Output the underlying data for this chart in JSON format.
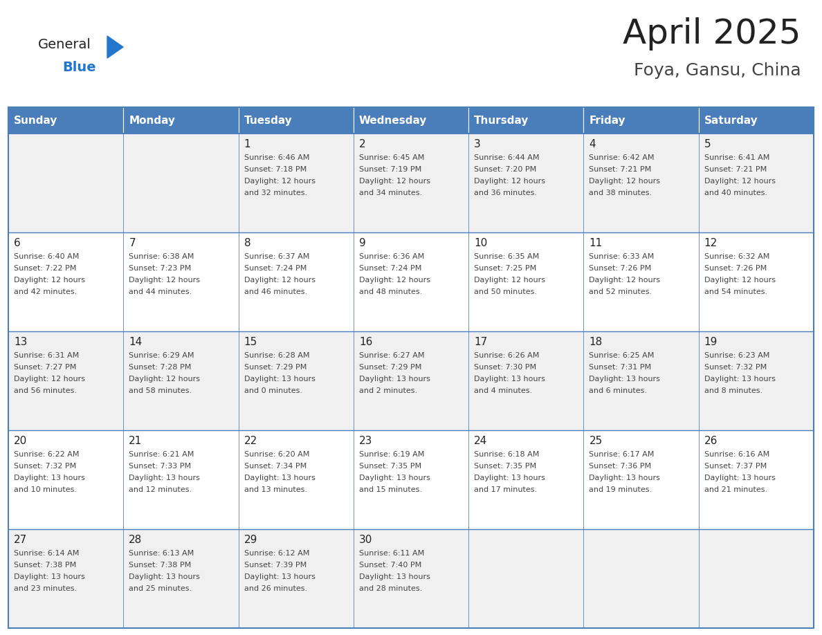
{
  "title": "April 2025",
  "subtitle": "Foya, Gansu, China",
  "days_of_week": [
    "Sunday",
    "Monday",
    "Tuesday",
    "Wednesday",
    "Thursday",
    "Friday",
    "Saturday"
  ],
  "header_bg": "#4A7EBB",
  "header_text": "#FFFFFF",
  "row_bg_light": "#F0F0F0",
  "row_bg_white": "#FFFFFF",
  "border_color": "#4A7EBB",
  "day_num_color": "#222222",
  "text_color": "#444444",
  "title_color": "#222222",
  "subtitle_color": "#444444",
  "logo_general_color": "#222222",
  "logo_blue_color": "#2277CC",
  "logo_triangle_color": "#2277CC",
  "calendar_data": [
    [
      {
        "day": "",
        "sunrise": "",
        "sunset": "",
        "daylight_line1": "",
        "daylight_line2": ""
      },
      {
        "day": "",
        "sunrise": "",
        "sunset": "",
        "daylight_line1": "",
        "daylight_line2": ""
      },
      {
        "day": "1",
        "sunrise": "Sunrise: 6:46 AM",
        "sunset": "Sunset: 7:18 PM",
        "daylight_line1": "Daylight: 12 hours",
        "daylight_line2": "and 32 minutes."
      },
      {
        "day": "2",
        "sunrise": "Sunrise: 6:45 AM",
        "sunset": "Sunset: 7:19 PM",
        "daylight_line1": "Daylight: 12 hours",
        "daylight_line2": "and 34 minutes."
      },
      {
        "day": "3",
        "sunrise": "Sunrise: 6:44 AM",
        "sunset": "Sunset: 7:20 PM",
        "daylight_line1": "Daylight: 12 hours",
        "daylight_line2": "and 36 minutes."
      },
      {
        "day": "4",
        "sunrise": "Sunrise: 6:42 AM",
        "sunset": "Sunset: 7:21 PM",
        "daylight_line1": "Daylight: 12 hours",
        "daylight_line2": "and 38 minutes."
      },
      {
        "day": "5",
        "sunrise": "Sunrise: 6:41 AM",
        "sunset": "Sunset: 7:21 PM",
        "daylight_line1": "Daylight: 12 hours",
        "daylight_line2": "and 40 minutes."
      }
    ],
    [
      {
        "day": "6",
        "sunrise": "Sunrise: 6:40 AM",
        "sunset": "Sunset: 7:22 PM",
        "daylight_line1": "Daylight: 12 hours",
        "daylight_line2": "and 42 minutes."
      },
      {
        "day": "7",
        "sunrise": "Sunrise: 6:38 AM",
        "sunset": "Sunset: 7:23 PM",
        "daylight_line1": "Daylight: 12 hours",
        "daylight_line2": "and 44 minutes."
      },
      {
        "day": "8",
        "sunrise": "Sunrise: 6:37 AM",
        "sunset": "Sunset: 7:24 PM",
        "daylight_line1": "Daylight: 12 hours",
        "daylight_line2": "and 46 minutes."
      },
      {
        "day": "9",
        "sunrise": "Sunrise: 6:36 AM",
        "sunset": "Sunset: 7:24 PM",
        "daylight_line1": "Daylight: 12 hours",
        "daylight_line2": "and 48 minutes."
      },
      {
        "day": "10",
        "sunrise": "Sunrise: 6:35 AM",
        "sunset": "Sunset: 7:25 PM",
        "daylight_line1": "Daylight: 12 hours",
        "daylight_line2": "and 50 minutes."
      },
      {
        "day": "11",
        "sunrise": "Sunrise: 6:33 AM",
        "sunset": "Sunset: 7:26 PM",
        "daylight_line1": "Daylight: 12 hours",
        "daylight_line2": "and 52 minutes."
      },
      {
        "day": "12",
        "sunrise": "Sunrise: 6:32 AM",
        "sunset": "Sunset: 7:26 PM",
        "daylight_line1": "Daylight: 12 hours",
        "daylight_line2": "and 54 minutes."
      }
    ],
    [
      {
        "day": "13",
        "sunrise": "Sunrise: 6:31 AM",
        "sunset": "Sunset: 7:27 PM",
        "daylight_line1": "Daylight: 12 hours",
        "daylight_line2": "and 56 minutes."
      },
      {
        "day": "14",
        "sunrise": "Sunrise: 6:29 AM",
        "sunset": "Sunset: 7:28 PM",
        "daylight_line1": "Daylight: 12 hours",
        "daylight_line2": "and 58 minutes."
      },
      {
        "day": "15",
        "sunrise": "Sunrise: 6:28 AM",
        "sunset": "Sunset: 7:29 PM",
        "daylight_line1": "Daylight: 13 hours",
        "daylight_line2": "and 0 minutes."
      },
      {
        "day": "16",
        "sunrise": "Sunrise: 6:27 AM",
        "sunset": "Sunset: 7:29 PM",
        "daylight_line1": "Daylight: 13 hours",
        "daylight_line2": "and 2 minutes."
      },
      {
        "day": "17",
        "sunrise": "Sunrise: 6:26 AM",
        "sunset": "Sunset: 7:30 PM",
        "daylight_line1": "Daylight: 13 hours",
        "daylight_line2": "and 4 minutes."
      },
      {
        "day": "18",
        "sunrise": "Sunrise: 6:25 AM",
        "sunset": "Sunset: 7:31 PM",
        "daylight_line1": "Daylight: 13 hours",
        "daylight_line2": "and 6 minutes."
      },
      {
        "day": "19",
        "sunrise": "Sunrise: 6:23 AM",
        "sunset": "Sunset: 7:32 PM",
        "daylight_line1": "Daylight: 13 hours",
        "daylight_line2": "and 8 minutes."
      }
    ],
    [
      {
        "day": "20",
        "sunrise": "Sunrise: 6:22 AM",
        "sunset": "Sunset: 7:32 PM",
        "daylight_line1": "Daylight: 13 hours",
        "daylight_line2": "and 10 minutes."
      },
      {
        "day": "21",
        "sunrise": "Sunrise: 6:21 AM",
        "sunset": "Sunset: 7:33 PM",
        "daylight_line1": "Daylight: 13 hours",
        "daylight_line2": "and 12 minutes."
      },
      {
        "day": "22",
        "sunrise": "Sunrise: 6:20 AM",
        "sunset": "Sunset: 7:34 PM",
        "daylight_line1": "Daylight: 13 hours",
        "daylight_line2": "and 13 minutes."
      },
      {
        "day": "23",
        "sunrise": "Sunrise: 6:19 AM",
        "sunset": "Sunset: 7:35 PM",
        "daylight_line1": "Daylight: 13 hours",
        "daylight_line2": "and 15 minutes."
      },
      {
        "day": "24",
        "sunrise": "Sunrise: 6:18 AM",
        "sunset": "Sunset: 7:35 PM",
        "daylight_line1": "Daylight: 13 hours",
        "daylight_line2": "and 17 minutes."
      },
      {
        "day": "25",
        "sunrise": "Sunrise: 6:17 AM",
        "sunset": "Sunset: 7:36 PM",
        "daylight_line1": "Daylight: 13 hours",
        "daylight_line2": "and 19 minutes."
      },
      {
        "day": "26",
        "sunrise": "Sunrise: 6:16 AM",
        "sunset": "Sunset: 7:37 PM",
        "daylight_line1": "Daylight: 13 hours",
        "daylight_line2": "and 21 minutes."
      }
    ],
    [
      {
        "day": "27",
        "sunrise": "Sunrise: 6:14 AM",
        "sunset": "Sunset: 7:38 PM",
        "daylight_line1": "Daylight: 13 hours",
        "daylight_line2": "and 23 minutes."
      },
      {
        "day": "28",
        "sunrise": "Sunrise: 6:13 AM",
        "sunset": "Sunset: 7:38 PM",
        "daylight_line1": "Daylight: 13 hours",
        "daylight_line2": "and 25 minutes."
      },
      {
        "day": "29",
        "sunrise": "Sunrise: 6:12 AM",
        "sunset": "Sunset: 7:39 PM",
        "daylight_line1": "Daylight: 13 hours",
        "daylight_line2": "and 26 minutes."
      },
      {
        "day": "30",
        "sunrise": "Sunrise: 6:11 AM",
        "sunset": "Sunset: 7:40 PM",
        "daylight_line1": "Daylight: 13 hours",
        "daylight_line2": "and 28 minutes."
      },
      {
        "day": "",
        "sunrise": "",
        "sunset": "",
        "daylight_line1": "",
        "daylight_line2": ""
      },
      {
        "day": "",
        "sunrise": "",
        "sunset": "",
        "daylight_line1": "",
        "daylight_line2": ""
      },
      {
        "day": "",
        "sunrise": "",
        "sunset": "",
        "daylight_line1": "",
        "daylight_line2": ""
      }
    ]
  ]
}
